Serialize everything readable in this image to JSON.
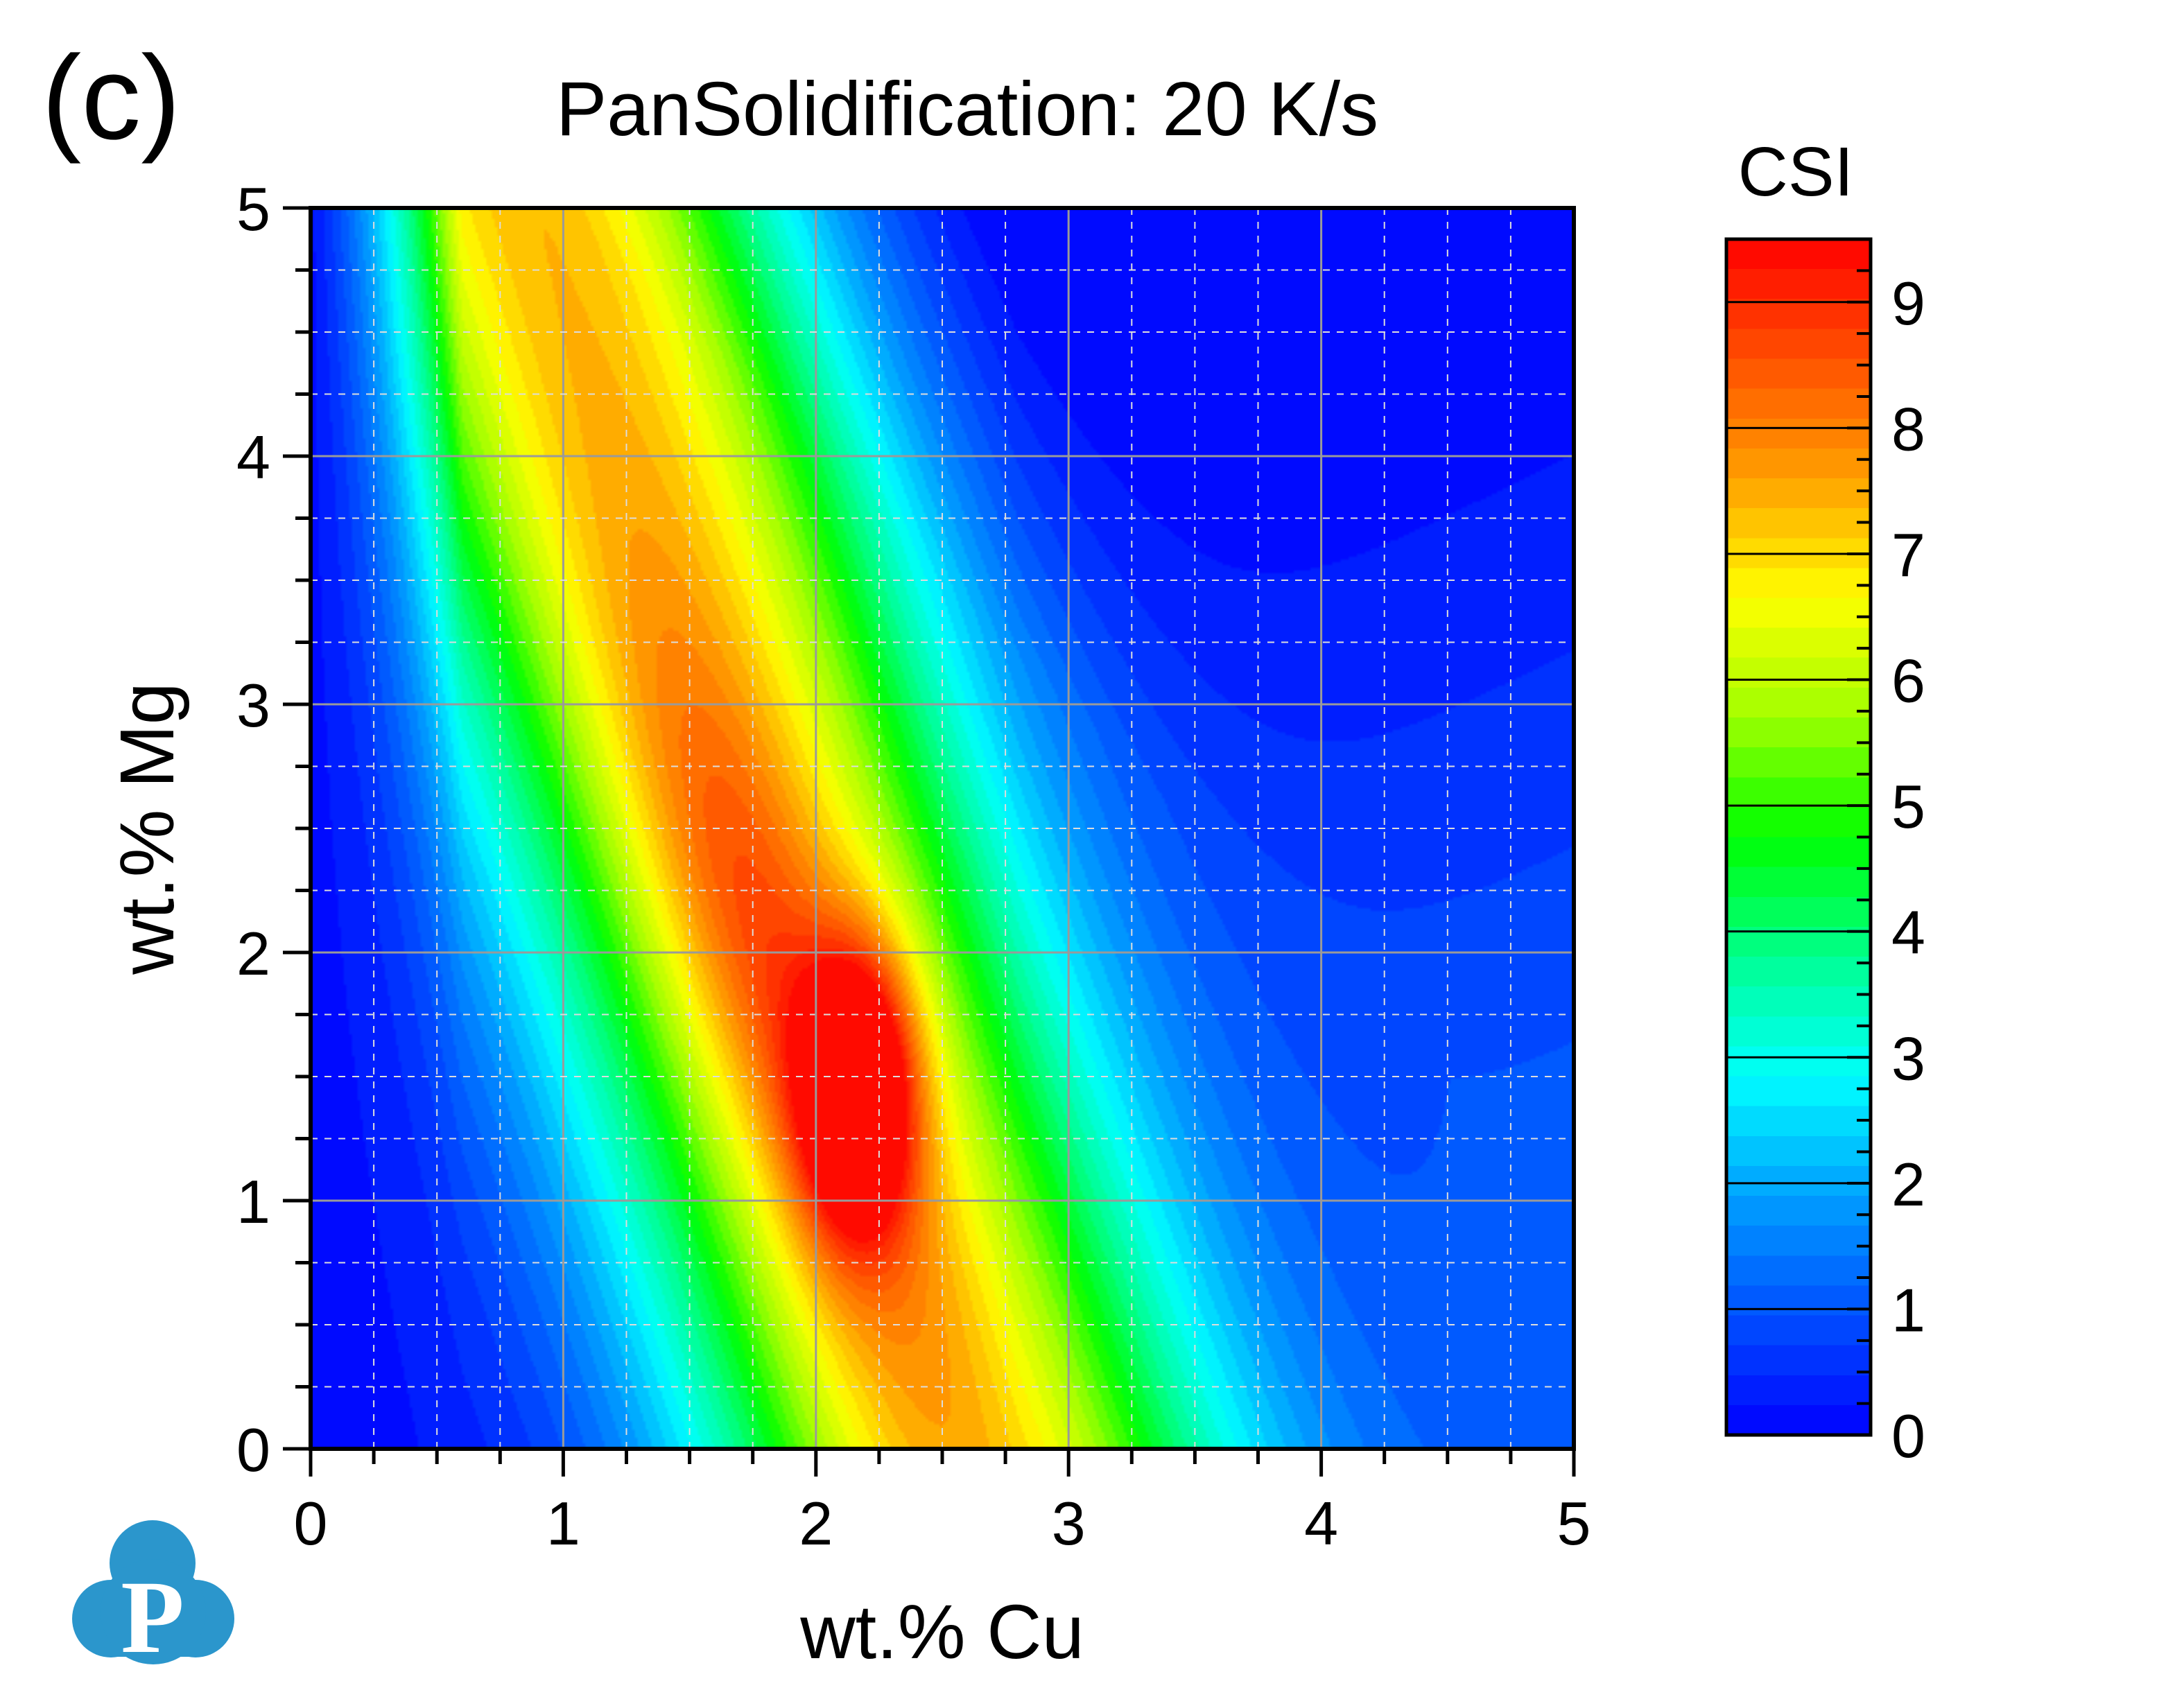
{
  "panel_label": "(c)",
  "chart_data": {
    "type": "heatmap",
    "title": "PanSolidification: 20 K/s",
    "xlabel": "wt.% Cu",
    "ylabel": "wt.% Mg",
    "xlim": [
      0,
      5
    ],
    "ylim": [
      0,
      5
    ],
    "x_ticks": [
      "0",
      "1",
      "2",
      "3",
      "4",
      "5"
    ],
    "y_ticks": [
      "0",
      "1",
      "2",
      "3",
      "4",
      "5"
    ],
    "grid": true,
    "x": [
      0,
      0.25,
      0.5,
      0.75,
      1,
      1.25,
      1.5,
      1.75,
      2,
      2.25,
      2.5,
      2.75,
      3,
      3.25,
      3.5,
      3.75,
      4,
      4.25,
      4.5,
      4.75,
      5
    ],
    "y": [
      0,
      0.25,
      0.5,
      0.75,
      1,
      1.25,
      1.5,
      1.75,
      2,
      2.25,
      2.5,
      2.75,
      3,
      3.25,
      3.5,
      3.75,
      4,
      4.25,
      4.5,
      4.75,
      5
    ],
    "z_description": "CSI peaks (~9.3) near Cu 2.0–2.3 wt.%, Mg 1.2–1.8 wt.%, decreasing to ~0 at Cu 0 and ~1 at high Cu/Mg corner",
    "peak": {
      "x": 2.15,
      "y": 1.45,
      "value": 9.3
    },
    "colorbar": {
      "label": "CSI",
      "range": [
        0,
        9.5
      ],
      "ticks": [
        "0",
        "1",
        "2",
        "3",
        "4",
        "5",
        "6",
        "7",
        "8",
        "9"
      ],
      "colors": [
        "#0000ff",
        "#0050ff",
        "#00a0ff",
        "#00ffff",
        "#00ff90",
        "#00ff00",
        "#a0ff00",
        "#ffff00",
        "#ffa000",
        "#ff5000",
        "#ff0000"
      ]
    }
  },
  "logo": {
    "letter": "P",
    "color": "#2b96cc"
  }
}
